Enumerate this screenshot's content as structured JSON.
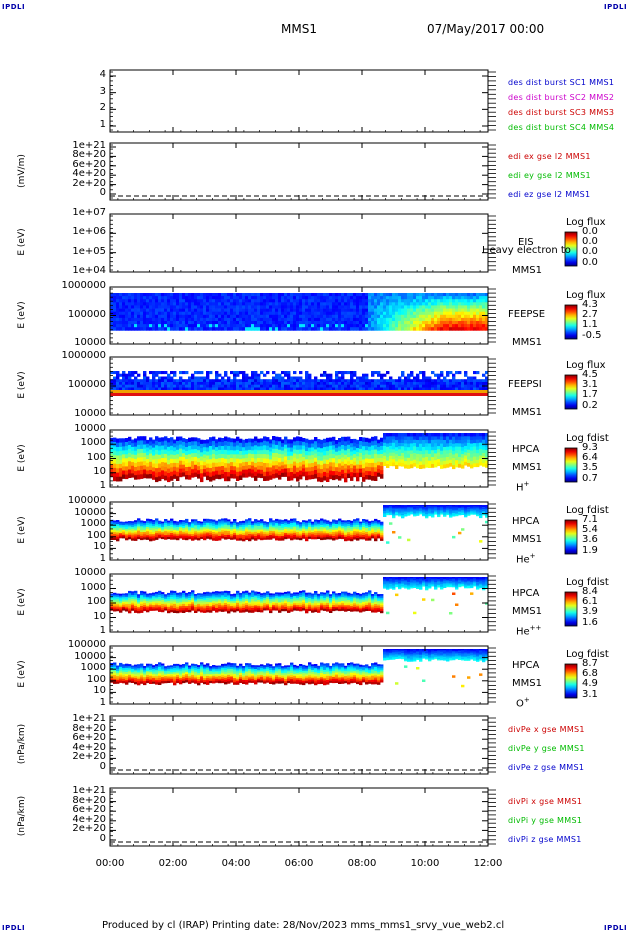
{
  "corners": {
    "text": "IPDLI"
  },
  "header": {
    "title": "MMS1",
    "date": "07/May/2017 00:00"
  },
  "footer": {
    "text": "Produced by cl (IRAP)   Printing date: 28/Nov/2023   mms_mms1_srvy_vue_web2.cl"
  },
  "colors": {
    "red": "#cc0000",
    "green": "#00bb00",
    "blue": "#0000cc",
    "magenta": "#cc00cc"
  },
  "chart_data": [
    {
      "type": "line",
      "panel": "des_dist_burst",
      "xlabel": "",
      "ylabel": "",
      "yticks": [
        "4",
        "3",
        "2",
        "1"
      ],
      "series": [
        {
          "name": "des dist burst SC1 MMS1",
          "color": "#0000cc"
        },
        {
          "name": "des dist burst SC2 MMS2",
          "color": "#cc00cc"
        },
        {
          "name": "des dist burst SC3 MMS3",
          "color": "#cc0000"
        },
        {
          "name": "des dist burst SC4 MMS4",
          "color": "#00bb00"
        }
      ]
    },
    {
      "type": "line",
      "panel": "edi",
      "ylabel": "(mV/m)",
      "yticks": [
        "1e+21",
        "8e+20",
        "6e+20",
        "4e+20",
        "2e+20",
        "0"
      ],
      "series": [
        {
          "name": "edi ex gse l2 MMS1",
          "color": "#cc0000"
        },
        {
          "name": "edi ey gse l2 MMS1",
          "color": "#00bb00"
        },
        {
          "name": "edi ez gse l2 MMS1",
          "color": "#0000cc"
        }
      ]
    },
    {
      "type": "heatmap",
      "panel": "eis",
      "ylabel": "E (eV)",
      "yticks": [
        "1e+07",
        "1e+06",
        "1e+05",
        "1e+04"
      ],
      "side_labels": [
        "EIS",
        "MMS1"
      ],
      "overlay_note": "Heavy electron to",
      "colorbar": {
        "title": "Log flux",
        "values": [
          "0.0",
          "0.0",
          "0.0",
          "0.0"
        ]
      }
    },
    {
      "type": "heatmap",
      "panel": "feepse",
      "ylabel": "E (eV)",
      "yticks": [
        "1000000",
        "100000",
        "10000"
      ],
      "side_labels": [
        "FEEPSE",
        "MMS1"
      ],
      "colorbar": {
        "title": "Log flux",
        "values": [
          "4.3",
          "2.7",
          "1.1",
          "-0.5"
        ]
      }
    },
    {
      "type": "heatmap",
      "panel": "feepsi",
      "ylabel": "E (eV)",
      "yticks": [
        "1000000",
        "100000",
        "10000"
      ],
      "side_labels": [
        "FEEPSI",
        "MMS1"
      ],
      "colorbar": {
        "title": "Log flux",
        "values": [
          "4.5",
          "3.1",
          "1.7",
          "0.2"
        ]
      }
    },
    {
      "type": "heatmap",
      "panel": "hpca_h",
      "ylabel": "E (eV)",
      "yticks": [
        "10000",
        "1000",
        "100",
        "10",
        "1"
      ],
      "side_labels": [
        "HPCA",
        "MMS1",
        "H+"
      ],
      "colorbar": {
        "title": "Log fdist",
        "values": [
          "9.3",
          "6.4",
          "3.5",
          "0.7"
        ]
      }
    },
    {
      "type": "heatmap",
      "panel": "hpca_he",
      "ylabel": "E (eV)",
      "yticks": [
        "100000",
        "10000",
        "1000",
        "100",
        "10",
        "1"
      ],
      "side_labels": [
        "HPCA",
        "MMS1",
        "He+"
      ],
      "colorbar": {
        "title": "Log fdist",
        "values": [
          "7.1",
          "5.4",
          "3.6",
          "1.9"
        ]
      }
    },
    {
      "type": "heatmap",
      "panel": "hpca_hepp",
      "ylabel": "E (eV)",
      "yticks": [
        "10000",
        "1000",
        "100",
        "10",
        "1"
      ],
      "side_labels": [
        "HPCA",
        "MMS1",
        "He++"
      ],
      "colorbar": {
        "title": "Log fdist",
        "values": [
          "8.4",
          "6.1",
          "3.9",
          "1.6"
        ]
      }
    },
    {
      "type": "heatmap",
      "panel": "hpca_o",
      "ylabel": "E (eV)",
      "yticks": [
        "100000",
        "10000",
        "1000",
        "100",
        "10",
        "1"
      ],
      "side_labels": [
        "HPCA",
        "MMS1",
        "O+"
      ],
      "colorbar": {
        "title": "Log fdist",
        "values": [
          "8.7",
          "6.8",
          "4.9",
          "3.1"
        ]
      }
    },
    {
      "type": "line",
      "panel": "divpe",
      "ylabel": "(nPa/km)",
      "yticks": [
        "1e+21",
        "8e+20",
        "6e+20",
        "4e+20",
        "2e+20",
        "0"
      ],
      "series": [
        {
          "name": "divPe x gse MMS1",
          "color": "#cc0000"
        },
        {
          "name": "divPe y gse MMS1",
          "color": "#00bb00"
        },
        {
          "name": "divPe z gse MMS1",
          "color": "#0000cc"
        }
      ]
    },
    {
      "type": "line",
      "panel": "divpi",
      "ylabel": "(nPa/km)",
      "yticks": [
        "1e+21",
        "8e+20",
        "6e+20",
        "4e+20",
        "2e+20",
        "0"
      ],
      "series": [
        {
          "name": "divPi x gse MMS1",
          "color": "#cc0000"
        },
        {
          "name": "divPi y gse MMS1",
          "color": "#00bb00"
        },
        {
          "name": "divPi z gse MMS1",
          "color": "#0000cc"
        }
      ]
    }
  ],
  "xaxis": {
    "ticks": [
      "00:00",
      "02:00",
      "04:00",
      "06:00",
      "08:00",
      "10:00",
      "12:00"
    ],
    "range": [
      "00:00",
      "12:00"
    ]
  }
}
